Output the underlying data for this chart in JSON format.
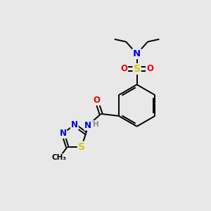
{
  "background_color": "#e8e8e8",
  "fig_size": [
    3.0,
    3.0
  ],
  "dpi": 100,
  "atom_colors": {
    "C": "#000000",
    "H": "#7a9a7a",
    "N": "#0000ee",
    "O": "#ee0000",
    "S": "#cccc00"
  },
  "bond_color": "#000000",
  "bond_width": 1.4,
  "font_size_atoms": 8.5,
  "font_size_small": 7.0,
  "font_size_ethyl": 7.5
}
